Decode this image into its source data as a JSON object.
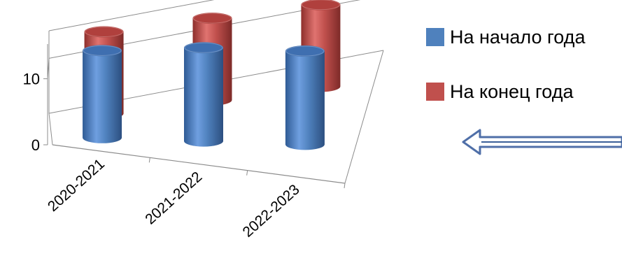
{
  "chart_data": {
    "type": "bar",
    "style": "3d-cylinder",
    "categories": [
      "2020-2021",
      "2021-2022",
      "2022-2023"
    ],
    "series": [
      {
        "name": "На начало года",
        "values": [
          14,
          15,
          15
        ],
        "color": "#4F81BD"
      },
      {
        "name": "На конец года",
        "values": [
          14,
          14,
          14
        ],
        "color": "#C0504D"
      }
    ],
    "yticks": [
      0,
      10
    ],
    "ylim": [
      0,
      15
    ],
    "legend_position": "right",
    "grid": true
  },
  "legend": {
    "items": [
      {
        "label": "На начало года",
        "color": "#4F81BD"
      },
      {
        "label": "На конец года",
        "color": "#C0504D"
      }
    ]
  },
  "decorations": {
    "arrow_color": "#4F6FA8",
    "arrow_icon": "left-arrow-icon"
  }
}
